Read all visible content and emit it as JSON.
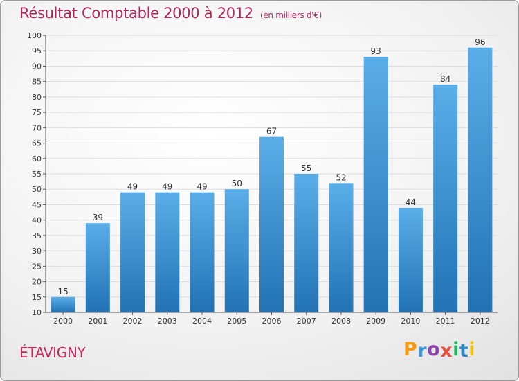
{
  "header": {
    "title": "Résultat Comptable 2000 à 2012",
    "subtitle": "(en milliers d'€)"
  },
  "footer": {
    "commune": "ÉTAVIGNY",
    "logo_letters": [
      "P",
      "r",
      "o",
      "x",
      "i",
      "t",
      "i"
    ],
    "logo_colors": [
      "#f39c12",
      "#3a9ad9",
      "#8e44ad",
      "#e74c3c",
      "#27ae60",
      "#2e86c1",
      "#f1c40f"
    ]
  },
  "colors": {
    "bar_light": "#5aaee8",
    "bar_dark": "#2272b4",
    "grid": "#dcdcdc",
    "axis": "#555555",
    "accent": "#b0285b"
  },
  "chart_data": {
    "type": "bar",
    "title": "Résultat Comptable 2000 à 2012",
    "subtitle": "(en milliers d'€)",
    "xlabel": "",
    "ylabel": "",
    "categories": [
      "2000",
      "2001",
      "2002",
      "2003",
      "2004",
      "2005",
      "2006",
      "2007",
      "2008",
      "2009",
      "2010",
      "2011",
      "2012"
    ],
    "values": [
      15,
      39,
      49,
      49,
      49,
      50,
      67,
      55,
      52,
      93,
      44,
      84,
      96
    ],
    "ylim": [
      10,
      100
    ],
    "yticks": [
      10,
      15,
      20,
      25,
      30,
      35,
      40,
      45,
      50,
      55,
      60,
      65,
      70,
      75,
      80,
      85,
      90,
      95,
      100
    ],
    "grid": true,
    "legend": "none"
  }
}
